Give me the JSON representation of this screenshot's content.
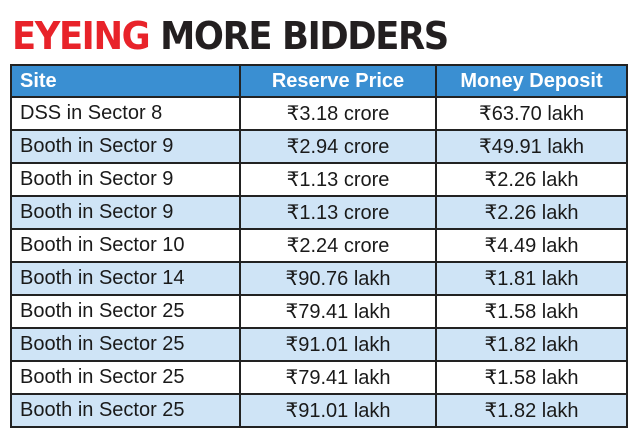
{
  "headline": {
    "part1": "EYEING",
    "part2": "MORE BIDDERS"
  },
  "colors": {
    "headline_red": "#e8232a",
    "header_blue": "#3a8fd2",
    "stripe_blue": "#cfe4f6"
  },
  "chart_data": {
    "type": "table",
    "title": "EYEING MORE BIDDERS",
    "columns": [
      "Site",
      "Reserve Price",
      "Money Deposit"
    ],
    "rows": [
      [
        "DSS in Sector 8",
        "₹3.18 crore",
        "₹63.70 lakh"
      ],
      [
        "Booth in Sector 9",
        "₹2.94 crore",
        "₹49.91 lakh"
      ],
      [
        "Booth in Sector 9",
        "₹1.13 crore",
        "₹2.26 lakh"
      ],
      [
        "Booth in Sector 9",
        "₹1.13 crore",
        "₹2.26 lakh"
      ],
      [
        "Booth in Sector 10",
        "₹2.24 crore",
        "₹4.49 lakh"
      ],
      [
        "Booth in Sector 14",
        "₹90.76 lakh",
        "₹1.81 lakh"
      ],
      [
        "Booth in Sector 25",
        "₹79.41 lakh",
        "₹1.58 lakh"
      ],
      [
        "Booth in Sector 25",
        "₹91.01 lakh",
        "₹1.82 lakh"
      ],
      [
        "Booth in Sector 25",
        "₹79.41 lakh",
        "₹1.58 lakh"
      ],
      [
        "Booth in Sector 25",
        "₹91.01 lakh",
        "₹1.82 lakh"
      ]
    ]
  }
}
